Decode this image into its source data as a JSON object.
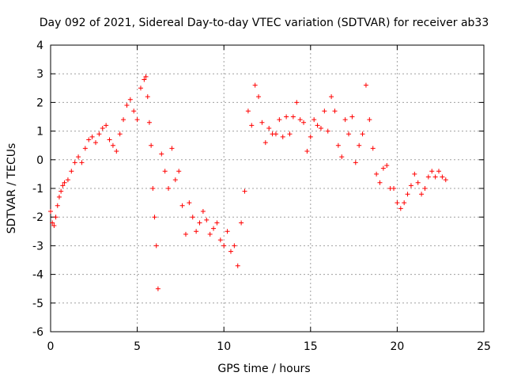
{
  "chart_data": {
    "type": "scatter",
    "title": "Day 092 of 2021, Sidereal Day-to-day VTEC variation (SDTVAR) for receiver ab33",
    "xlabel": "GPS time / hours",
    "ylabel": "SDTVAR / TECUs",
    "xlim": [
      0,
      25
    ],
    "ylim": [
      -6,
      4
    ],
    "x_ticks": [
      0,
      5,
      10,
      15,
      20,
      25
    ],
    "y_ticks": [
      -6,
      -5,
      -4,
      -3,
      -2,
      -1,
      0,
      1,
      2,
      3,
      4
    ],
    "grid": true,
    "marker": "+",
    "color": "#ff0000",
    "series": [
      {
        "name": "SDTVAR",
        "x": [
          0.0,
          0.1,
          0.2,
          0.3,
          0.4,
          0.5,
          0.6,
          0.7,
          0.8,
          1.0,
          1.2,
          1.4,
          1.6,
          1.8,
          2.0,
          2.2,
          2.4,
          2.6,
          2.8,
          3.0,
          3.2,
          3.4,
          3.6,
          3.8,
          4.0,
          4.2,
          4.4,
          4.6,
          4.8,
          5.0,
          5.2,
          5.4,
          5.5,
          5.6,
          5.7,
          5.8,
          5.9,
          6.0,
          6.1,
          6.2,
          6.4,
          6.6,
          6.8,
          7.0,
          7.2,
          7.4,
          7.6,
          7.8,
          8.0,
          8.2,
          8.4,
          8.6,
          8.8,
          9.0,
          9.2,
          9.4,
          9.6,
          9.8,
          10.0,
          10.2,
          10.4,
          10.6,
          10.8,
          11.0,
          11.2,
          11.4,
          11.6,
          11.8,
          12.0,
          12.2,
          12.4,
          12.6,
          12.8,
          13.0,
          13.2,
          13.4,
          13.6,
          13.8,
          14.0,
          14.2,
          14.4,
          14.6,
          14.8,
          15.0,
          15.2,
          15.4,
          15.6,
          15.8,
          16.0,
          16.2,
          16.4,
          16.6,
          16.8,
          17.0,
          17.2,
          17.4,
          17.6,
          17.8,
          18.0,
          18.2,
          18.4,
          18.6,
          18.8,
          19.0,
          19.2,
          19.4,
          19.6,
          19.8,
          20.0,
          20.2,
          20.4,
          20.6,
          20.8,
          21.0,
          21.2,
          21.4,
          21.6,
          21.8,
          22.0,
          22.2,
          22.4,
          22.6,
          22.8
        ],
        "y": [
          -1.8,
          -2.2,
          -2.3,
          -2.0,
          -1.6,
          -1.3,
          -1.1,
          -0.9,
          -0.8,
          -0.7,
          -0.4,
          -0.1,
          0.1,
          -0.1,
          0.4,
          0.7,
          0.8,
          0.6,
          0.9,
          1.1,
          1.2,
          0.7,
          0.5,
          0.3,
          0.9,
          1.4,
          1.9,
          2.1,
          1.7,
          1.4,
          2.5,
          2.8,
          2.9,
          2.2,
          1.3,
          0.5,
          -1.0,
          -2.0,
          -3.0,
          -4.5,
          0.2,
          -0.4,
          -1.0,
          0.4,
          -0.7,
          -0.4,
          -1.6,
          -2.6,
          -1.5,
          -2.0,
          -2.5,
          -2.2,
          -1.8,
          -2.1,
          -2.6,
          -2.4,
          -2.2,
          -2.8,
          -3.0,
          -2.5,
          -3.2,
          -3.0,
          -3.7,
          -2.2,
          -1.1,
          1.7,
          1.2,
          2.6,
          2.2,
          1.3,
          0.6,
          1.1,
          0.9,
          0.9,
          1.4,
          0.8,
          1.5,
          0.9,
          1.5,
          2.0,
          1.4,
          1.3,
          0.3,
          0.8,
          1.4,
          1.2,
          1.1,
          1.7,
          1.0,
          2.2,
          1.7,
          0.5,
          0.1,
          1.4,
          0.9,
          1.5,
          -0.1,
          0.5,
          0.9,
          2.6,
          1.4,
          0.4,
          -0.5,
          -0.8,
          -0.3,
          -0.2,
          -1.0,
          -1.0,
          -1.5,
          -1.7,
          -1.5,
          -1.2,
          -0.9,
          -0.5,
          -0.8,
          -1.2,
          -1.0,
          -0.6,
          -0.4,
          -0.6,
          -0.4,
          -0.6,
          -0.7
        ]
      }
    ]
  }
}
